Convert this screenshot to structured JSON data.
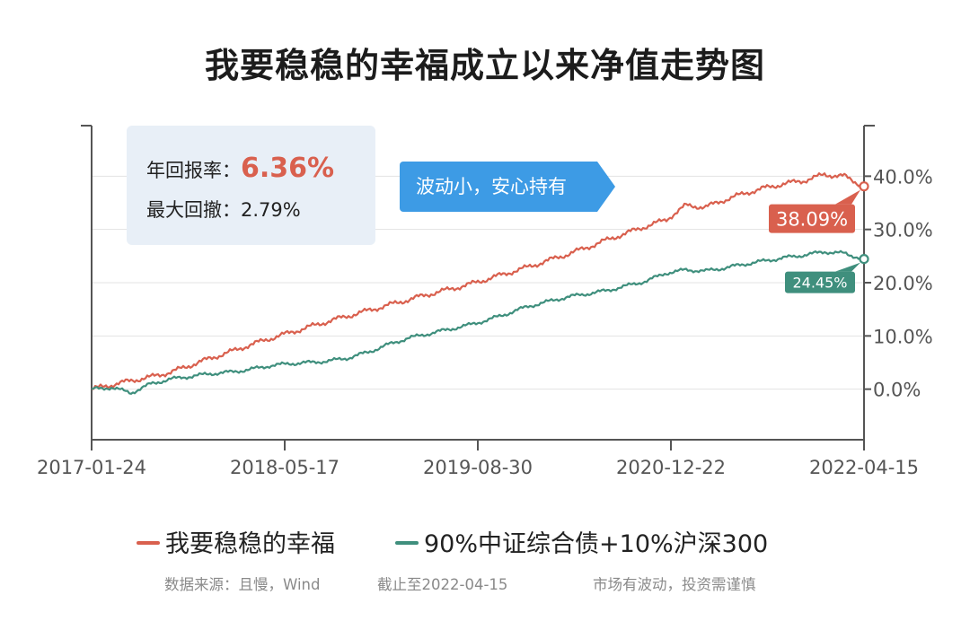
{
  "title": "我要稳稳的幸福成立以来净值走势图",
  "stats": {
    "annual_return_label": "年回报率：",
    "annual_return_value": "6.36%",
    "max_drawdown_label": "最大回撤：",
    "max_drawdown_value": "2.79%"
  },
  "callout_text": "波动小，安心持有",
  "legend": {
    "series1": "我要稳稳的幸福",
    "series2": "90%中证综合债+10%沪深300"
  },
  "footer": {
    "source": "数据来源：且慢，Wind",
    "cutoff": "截止至2022-04-15",
    "risk": "市场有波动，投资需谨慎"
  },
  "colors": {
    "series1": "#d9604e",
    "series2": "#3f8f7d",
    "callout": "#3d9be5",
    "stat_box": "#e8eff7"
  },
  "chart_data": {
    "type": "line",
    "x_ticks": [
      "2017-01-24",
      "2018-05-17",
      "2019-08-30",
      "2020-12-22",
      "2022-04-15"
    ],
    "y_ticks": [
      "0.0%",
      "10.0%",
      "20.0%",
      "30.0%",
      "40.0%"
    ],
    "ylim": [
      -9.5,
      49.5
    ],
    "y_axis_side": "right",
    "grid": true,
    "legend_position": "bottom",
    "series": [
      {
        "name": "我要稳稳的幸福",
        "end_label": "38.09%",
        "values": [
          0.0,
          0.8,
          1.6,
          2.3,
          3.2,
          4.5,
          5.8,
          7.0,
          8.3,
          9.5,
          10.6,
          11.7,
          12.8,
          13.8,
          14.8,
          15.8,
          16.8,
          17.8,
          18.7,
          19.6,
          20.7,
          21.8,
          22.9,
          24.1,
          25.3,
          26.6,
          28.0,
          29.3,
          30.6,
          31.8,
          34.5,
          34.2,
          35.6,
          36.8,
          37.8,
          38.6,
          39.2,
          40.3,
          40.0,
          38.09
        ]
      },
      {
        "name": "90%中证综合债+10%沪深300",
        "end_label": "24.45%",
        "values": [
          0.0,
          0.3,
          -0.7,
          1.0,
          1.9,
          2.4,
          2.9,
          3.2,
          3.7,
          4.4,
          4.8,
          5.0,
          5.3,
          5.9,
          7.0,
          8.4,
          9.6,
          10.4,
          11.2,
          12.0,
          13.0,
          14.2,
          15.5,
          16.4,
          17.3,
          17.9,
          18.5,
          19.4,
          20.3,
          21.8,
          22.4,
          22.2,
          22.8,
          23.5,
          24.1,
          24.7,
          25.2,
          25.8,
          25.5,
          24.45
        ]
      }
    ]
  }
}
